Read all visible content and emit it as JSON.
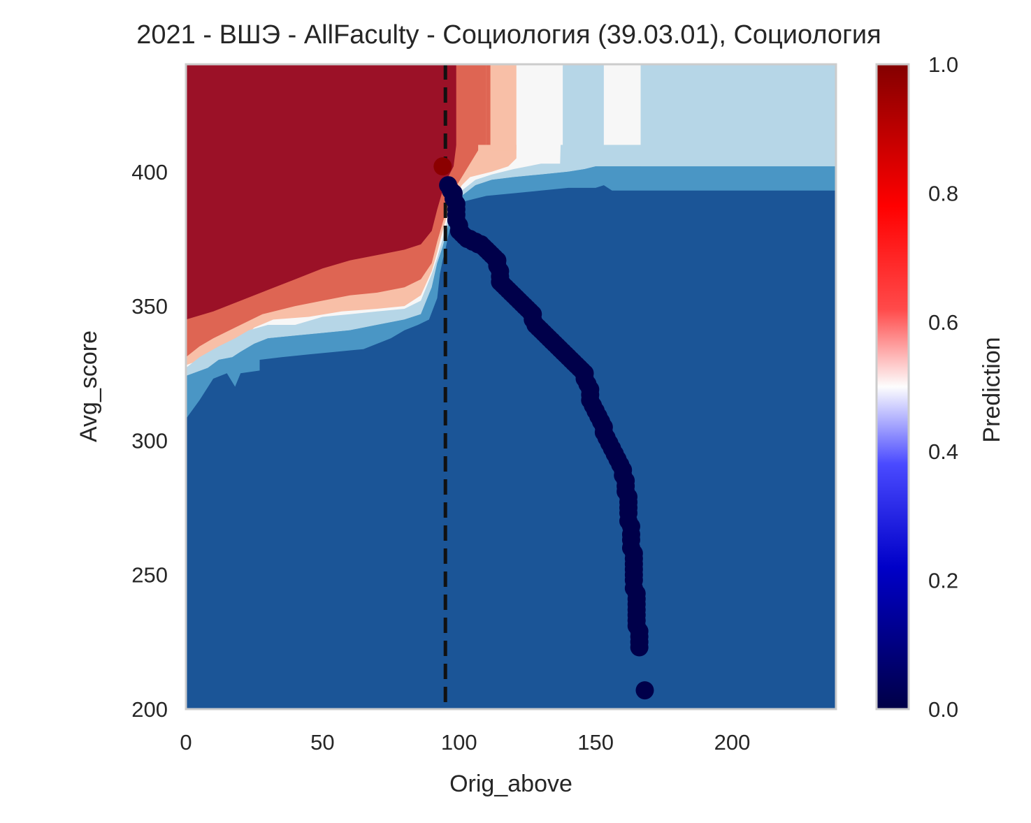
{
  "chart_data": {
    "type": "heatmap",
    "title": "2021 - ВШЭ - AllFaculty - Социология (39.03.01), Социология",
    "xlabel": "Orig_above",
    "ylabel": "Avg_score",
    "xlim": [
      0,
      238
    ],
    "ylim": [
      200,
      440
    ],
    "x_ticks": [
      0,
      50,
      100,
      150,
      200
    ],
    "y_ticks": [
      200,
      250,
      300,
      350,
      400
    ],
    "colorbar": {
      "label": "Prediction",
      "range": [
        0,
        1
      ],
      "ticks": [
        "0.0",
        "0.2",
        "0.4",
        "0.6",
        "0.8",
        "1.0"
      ],
      "colormap": "seismic"
    },
    "background_regions": {
      "colors": {
        "p90_100": "#9b1127",
        "p80_90": "#de6553",
        "p70_80": "#f8bfa7",
        "p60_70": "#f7f7f7",
        "p50_60": "#b6d6e7",
        "p40_50": "#4a96c5",
        "p0_40": "#1b5597"
      },
      "contours": [
        {
          "level": "p0_40",
          "boundary": [
            [
              0,
              308
            ],
            [
              5,
              315
            ],
            [
              10,
              323
            ],
            [
              15,
              325
            ],
            [
              18,
              320
            ],
            [
              20,
              325
            ],
            [
              27,
              326
            ],
            [
              27,
              330
            ],
            [
              35,
              331
            ],
            [
              45,
              332
            ],
            [
              55,
              333
            ],
            [
              65,
              334
            ],
            [
              70,
              336
            ],
            [
              75,
              338
            ],
            [
              80,
              341
            ],
            [
              85,
              343
            ],
            [
              89,
              345
            ],
            [
              92,
              353
            ],
            [
              93,
              362
            ],
            [
              94,
              367
            ],
            [
              95,
              371
            ],
            [
              96,
              376
            ],
            [
              97,
              380
            ],
            [
              99,
              386
            ],
            [
              102,
              389
            ],
            [
              110,
              391
            ],
            [
              120,
              392
            ],
            [
              130,
              393
            ],
            [
              140,
              394
            ],
            [
              150,
              394
            ],
            [
              153,
              395
            ],
            [
              156,
              393
            ],
            [
              238,
              393
            ]
          ]
        },
        {
          "level": "p40_50",
          "boundary": [
            [
              0,
              324
            ],
            [
              8,
              327
            ],
            [
              12,
              330
            ],
            [
              17,
              331
            ],
            [
              20,
              333
            ],
            [
              25,
              336
            ],
            [
              30,
              338
            ],
            [
              40,
              339
            ],
            [
              50,
              340
            ],
            [
              60,
              341
            ],
            [
              70,
              343
            ],
            [
              80,
              345
            ],
            [
              86,
              347
            ],
            [
              90,
              357
            ],
            [
              92,
              366
            ],
            [
              94,
              372
            ],
            [
              96,
              380
            ],
            [
              98,
              386
            ],
            [
              101,
              391
            ],
            [
              106,
              395
            ],
            [
              112,
              397
            ],
            [
              120,
              398
            ],
            [
              130,
              399
            ],
            [
              140,
              400
            ],
            [
              146,
              401
            ],
            [
              150,
              402
            ],
            [
              238,
              402
            ]
          ]
        },
        {
          "level": "p50_60",
          "boundary": [
            [
              0,
              327
            ],
            [
              5,
              331
            ],
            [
              12,
              335
            ],
            [
              18,
              338
            ],
            [
              23,
              341
            ],
            [
              30,
              343
            ],
            [
              40,
              343
            ],
            [
              50,
              346
            ],
            [
              60,
              347
            ],
            [
              70,
              348
            ],
            [
              80,
              349
            ],
            [
              86,
              352
            ],
            [
              90,
              362
            ],
            [
              92,
              368
            ],
            [
              94,
              375
            ],
            [
              96,
              383
            ],
            [
              98,
              389
            ],
            [
              101,
              393
            ],
            [
              106,
              397
            ],
            [
              112,
              399
            ],
            [
              120,
              401
            ],
            [
              130,
              403
            ],
            [
              137,
              403
            ],
            [
              138,
              440
            ]
          ]
        },
        {
          "level": "p60_70",
          "boundary": [
            [
              0,
              328
            ],
            [
              8,
              331
            ],
            [
              16,
              335
            ],
            [
              22,
              339
            ],
            [
              25,
              342
            ],
            [
              32,
              345
            ],
            [
              45,
              346
            ],
            [
              57,
              348
            ],
            [
              70,
              349
            ],
            [
              80,
              350
            ],
            [
              86,
              354
            ],
            [
              90,
              363
            ],
            [
              92,
              370
            ],
            [
              94,
              378
            ],
            [
              96,
              385
            ],
            [
              98,
              390
            ],
            [
              101,
              395
            ],
            [
              104,
              398
            ],
            [
              112,
              400
            ],
            [
              118,
              402
            ],
            [
              121,
              405
            ],
            [
              121,
              440
            ]
          ]
        },
        {
          "level": "p70_80",
          "boundary": [
            [
              0,
              331
            ],
            [
              5,
              335
            ],
            [
              10,
              338
            ],
            [
              18,
              342
            ],
            [
              24,
              345
            ],
            [
              28,
              347
            ],
            [
              40,
              350
            ],
            [
              50,
              352
            ],
            [
              60,
              354
            ],
            [
              70,
              355
            ],
            [
              80,
              357
            ],
            [
              86,
              360
            ],
            [
              90,
              366
            ],
            [
              92,
              374
            ],
            [
              94,
              381
            ],
            [
              96,
              388
            ],
            [
              98,
              393
            ],
            [
              101,
              398
            ],
            [
              104,
              403
            ],
            [
              107,
              408
            ],
            [
              107,
              440
            ]
          ]
        },
        {
          "level": "p80_90",
          "boundary": [
            [
              0,
              345
            ],
            [
              10,
              348
            ],
            [
              20,
              352
            ],
            [
              30,
              356
            ],
            [
              40,
              360
            ],
            [
              50,
              364
            ],
            [
              60,
              367
            ],
            [
              70,
              369
            ],
            [
              80,
              371
            ],
            [
              86,
              373
            ],
            [
              90,
              378
            ],
            [
              92,
              386
            ],
            [
              94,
              393
            ],
            [
              96,
              398
            ],
            [
              98,
              402
            ],
            [
              99,
              410
            ],
            [
              99,
              440
            ]
          ]
        }
      ],
      "stripes": [
        {
          "x0": 99,
          "x1": 104,
          "y_bottom": 404,
          "level": "p80_90"
        },
        {
          "x0": 104,
          "x1": 110,
          "y_bottom": 410,
          "level": "p80_90"
        },
        {
          "x0": 110,
          "x1": 111.5,
          "y_bottom": 410,
          "level": "p80_90"
        },
        {
          "x0": 111.5,
          "x1": 121,
          "y_bottom": 408,
          "level": "p70_80"
        },
        {
          "x0": 121,
          "x1": 138,
          "y_bottom": 410,
          "level": "p60_70"
        },
        {
          "x0": 138,
          "x1": 153,
          "y_bottom": 410,
          "level": "p50_60"
        },
        {
          "x0": 153,
          "x1": 166.5,
          "y_bottom": 410,
          "level": "p60_70"
        },
        {
          "x0": 166.5,
          "x1": 238,
          "y_bottom": 402,
          "level": "p50_60"
        }
      ]
    },
    "threshold_line": {
      "x": 95,
      "style": "dashed",
      "color": "#111111"
    },
    "points_positive": {
      "color": "#8b0000",
      "points": [
        [
          94,
          402
        ]
      ]
    },
    "points_negative": {
      "color": "#00004a",
      "points": [
        [
          96,
          395
        ],
        [
          97,
          393
        ],
        [
          98,
          392
        ],
        [
          98,
          390
        ],
        [
          99,
          388
        ],
        [
          99,
          386
        ],
        [
          99,
          384
        ],
        [
          99,
          382
        ],
        [
          100,
          380
        ],
        [
          100,
          378
        ],
        [
          101,
          377
        ],
        [
          102,
          376
        ],
        [
          103,
          375
        ],
        [
          104,
          375
        ],
        [
          105,
          374
        ],
        [
          106,
          374
        ],
        [
          107,
          373
        ],
        [
          108,
          373
        ],
        [
          109,
          372
        ],
        [
          110,
          371
        ],
        [
          111,
          370
        ],
        [
          112,
          369
        ],
        [
          113,
          368
        ],
        [
          114,
          367
        ],
        [
          114,
          365
        ],
        [
          115,
          363
        ],
        [
          115,
          361
        ],
        [
          115,
          359
        ],
        [
          116,
          358
        ],
        [
          117,
          357
        ],
        [
          118,
          356
        ],
        [
          119,
          355
        ],
        [
          120,
          354
        ],
        [
          121,
          353
        ],
        [
          122,
          352
        ],
        [
          123,
          351
        ],
        [
          124,
          350
        ],
        [
          125,
          349
        ],
        [
          126,
          348
        ],
        [
          127,
          347
        ],
        [
          127,
          345
        ],
        [
          128,
          343
        ],
        [
          129,
          342
        ],
        [
          130,
          341
        ],
        [
          131,
          340
        ],
        [
          132,
          339
        ],
        [
          133,
          338
        ],
        [
          134,
          337
        ],
        [
          135,
          336
        ],
        [
          136,
          335
        ],
        [
          137,
          334
        ],
        [
          138,
          333
        ],
        [
          139,
          332
        ],
        [
          140,
          331
        ],
        [
          141,
          330
        ],
        [
          142,
          329
        ],
        [
          143,
          328
        ],
        [
          144,
          327
        ],
        [
          145,
          326
        ],
        [
          146,
          325
        ],
        [
          146,
          323
        ],
        [
          147,
          321
        ],
        [
          148,
          319
        ],
        [
          148,
          317
        ],
        [
          148,
          315
        ],
        [
          149,
          313
        ],
        [
          150,
          311
        ],
        [
          151,
          309
        ],
        [
          152,
          307
        ],
        [
          153,
          305
        ],
        [
          153,
          303
        ],
        [
          154,
          301
        ],
        [
          155,
          299
        ],
        [
          156,
          297
        ],
        [
          157,
          295
        ],
        [
          158,
          293
        ],
        [
          159,
          291
        ],
        [
          160,
          289
        ],
        [
          160,
          287
        ],
        [
          161,
          285
        ],
        [
          161,
          283
        ],
        [
          161,
          281
        ],
        [
          162,
          279
        ],
        [
          162,
          277
        ],
        [
          162,
          275
        ],
        [
          162,
          273
        ],
        [
          162,
          270
        ],
        [
          163,
          268
        ],
        [
          163,
          265
        ],
        [
          163,
          263
        ],
        [
          163,
          260
        ],
        [
          164,
          258
        ],
        [
          164,
          256
        ],
        [
          164,
          254
        ],
        [
          164,
          252
        ],
        [
          164,
          250
        ],
        [
          164,
          248
        ],
        [
          164,
          245
        ],
        [
          165,
          243
        ],
        [
          165,
          241
        ],
        [
          165,
          239
        ],
        [
          165,
          237
        ],
        [
          165,
          235
        ],
        [
          165,
          233
        ],
        [
          165,
          231
        ],
        [
          166,
          229
        ],
        [
          166,
          227
        ],
        [
          166,
          225
        ],
        [
          166,
          223
        ],
        [
          168,
          207
        ]
      ]
    }
  }
}
